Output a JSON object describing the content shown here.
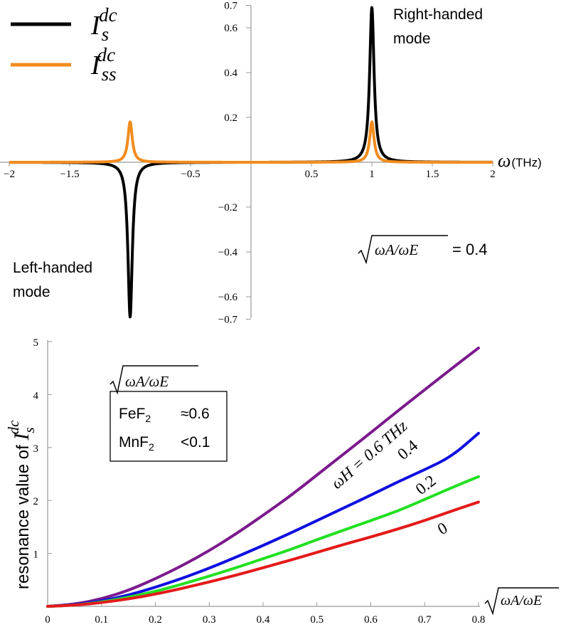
{
  "chart_data": [
    {
      "type": "line",
      "title": "",
      "xlabel": "ω (THz)",
      "xlabel_symbol": "ω",
      "xlabel_unit": "(THz)",
      "xlim": [
        -2,
        2
      ],
      "ylim": [
        -0.7,
        0.7
      ],
      "x_ticks": [
        "−2",
        "−1.5",
        "−0.5",
        "0.5",
        "1",
        "1.5",
        "2"
      ],
      "y_ticks": [
        "0.7",
        "0.6",
        "0.4",
        "0.2",
        "−0.2",
        "−0.4",
        "−0.6",
        "−0.7"
      ],
      "legend": [
        {
          "sym": "I",
          "sub": "s",
          "sup": "dc",
          "color": "#000000"
        },
        {
          "sym": "I",
          "sub": "ss",
          "sup": "dc",
          "color": "#f28c1e"
        }
      ],
      "series": [
        {
          "name": "I_s^dc",
          "color": "#000000",
          "peaks": [
            {
              "x": -1,
              "y": -0.69
            },
            {
              "x": 1,
              "y": 0.69
            }
          ],
          "half_width": 0.022
        },
        {
          "name": "I_ss^dc",
          "color": "#f28c1e",
          "peaks": [
            {
              "x": -1,
              "y": 0.18
            },
            {
              "x": 1,
              "y": 0.18
            }
          ],
          "half_width": 0.022
        }
      ],
      "annotations": {
        "right_line1": "Right-handed",
        "right_line2": "mode",
        "left_line1": "Left-handed",
        "left_line2": "mode",
        "ratio_sym": "ωA/ωE",
        "ratio_value": "= 0.4"
      }
    },
    {
      "type": "line",
      "title": "",
      "ylabel": "resonance value of ",
      "ylabel_sym": "I",
      "ylabel_sub": "s",
      "ylabel_sup": "dc",
      "xlabel_sym": "ωA/ωE",
      "xlim": [
        0,
        0.8
      ],
      "ylim": [
        0,
        5
      ],
      "x_ticks": [
        "0",
        "0.1",
        "0.2",
        "0.3",
        "0.4",
        "0.5",
        "0.6",
        "0.7",
        "0.8"
      ],
      "y_ticks": [
        "1",
        "2",
        "3",
        "4",
        "5"
      ],
      "series": [
        {
          "name": "ωH = 0.6 THz",
          "color": "#7b1a8c",
          "end": 4.88,
          "x": [
            0,
            0.05,
            0.1,
            0.15,
            0.2,
            0.25,
            0.3,
            0.35,
            0.4,
            0.45,
            0.5,
            0.55,
            0.6,
            0.65,
            0.7,
            0.75,
            0.8
          ],
          "y": [
            0,
            0.04,
            0.14,
            0.3,
            0.52,
            0.77,
            1.05,
            1.37,
            1.72,
            2.08,
            2.48,
            2.88,
            3.28,
            3.69,
            4.09,
            4.49,
            4.88
          ]
        },
        {
          "name": "0.4",
          "color": "#1010e0",
          "end": 3.27,
          "x": [
            0,
            0.05,
            0.1,
            0.15,
            0.2,
            0.25,
            0.3,
            0.35,
            0.4,
            0.45,
            0.5,
            0.55,
            0.6,
            0.65,
            0.7,
            0.75,
            0.8
          ],
          "y": [
            0,
            0.03,
            0.1,
            0.21,
            0.36,
            0.53,
            0.72,
            0.93,
            1.15,
            1.38,
            1.62,
            1.86,
            2.1,
            2.35,
            2.58,
            2.83,
            3.27
          ]
        },
        {
          "name": "0.2",
          "color": "#22e022",
          "end": 2.45,
          "x": [
            0,
            0.05,
            0.1,
            0.15,
            0.2,
            0.25,
            0.3,
            0.35,
            0.4,
            0.45,
            0.5,
            0.55,
            0.6,
            0.65,
            0.7,
            0.75,
            0.8
          ],
          "y": [
            0,
            0.02,
            0.08,
            0.17,
            0.28,
            0.42,
            0.57,
            0.73,
            0.9,
            1.07,
            1.26,
            1.44,
            1.62,
            1.8,
            2.02,
            2.24,
            2.45
          ]
        },
        {
          "name": "0",
          "color": "#e41a1a",
          "end": 1.97,
          "x": [
            0,
            0.05,
            0.1,
            0.15,
            0.2,
            0.25,
            0.3,
            0.35,
            0.4,
            0.45,
            0.5,
            0.55,
            0.6,
            0.65,
            0.7,
            0.75,
            0.8
          ],
          "y": [
            0,
            0.02,
            0.07,
            0.14,
            0.23,
            0.34,
            0.46,
            0.59,
            0.73,
            0.87,
            1.02,
            1.17,
            1.31,
            1.46,
            1.62,
            1.8,
            1.97
          ]
        }
      ],
      "annotations": {
        "omega_h_label": "ωH = 0.6 THz",
        "label_04": "0.4",
        "label_02": "0.2",
        "label_0": "0",
        "box_title_sym": "ωA/ωE",
        "box_rows": [
          {
            "material": "FeF",
            "sub": "2",
            "value": "≈0.6"
          },
          {
            "material": "MnF",
            "sub": "2",
            "value": "<0.1"
          }
        ]
      }
    }
  ]
}
